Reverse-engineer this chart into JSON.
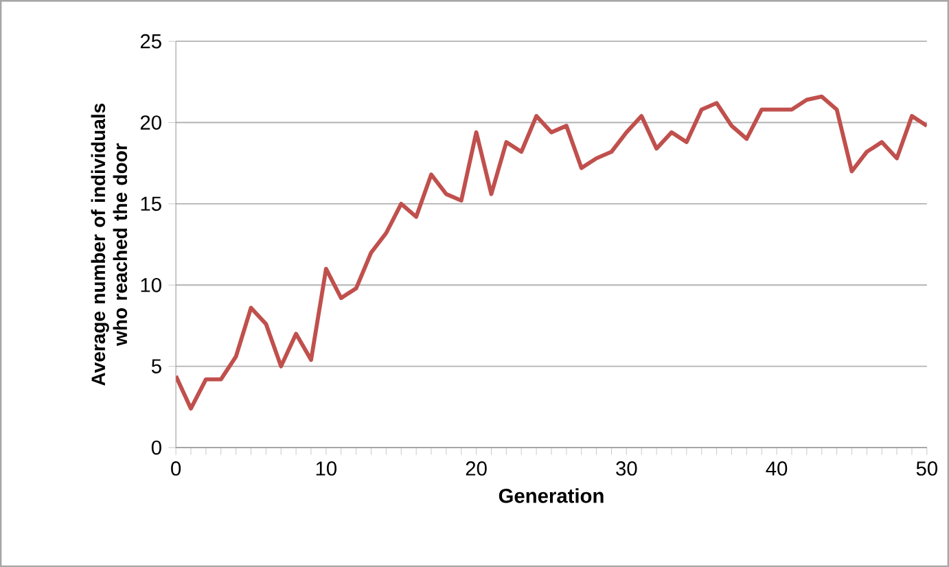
{
  "chart_data": {
    "type": "line",
    "xlabel": "Generation",
    "ylabel": "Average number of individuals who reached the door",
    "x": [
      0,
      1,
      2,
      3,
      4,
      5,
      6,
      7,
      8,
      9,
      10,
      11,
      12,
      13,
      14,
      15,
      16,
      17,
      18,
      19,
      20,
      21,
      22,
      23,
      24,
      25,
      26,
      27,
      28,
      29,
      30,
      31,
      32,
      33,
      34,
      35,
      36,
      37,
      38,
      39,
      40,
      41,
      42,
      43,
      44,
      45,
      46,
      47,
      48,
      49,
      50
    ],
    "series": [
      {
        "color": "#c0504d",
        "values": [
          4.4,
          2.4,
          4.2,
          4.2,
          5.6,
          8.6,
          7.6,
          5.0,
          7.0,
          5.4,
          11.0,
          9.2,
          9.8,
          12.0,
          13.2,
          15.0,
          14.2,
          16.8,
          15.6,
          15.2,
          19.4,
          15.6,
          18.8,
          18.2,
          20.4,
          19.4,
          19.8,
          17.2,
          17.8,
          18.2,
          19.4,
          20.4,
          18.4,
          19.4,
          18.8,
          20.8,
          21.2,
          19.8,
          19.0,
          20.8,
          20.8,
          20.8,
          21.4,
          21.6,
          20.8,
          17.0,
          18.2,
          18.8,
          17.8,
          20.4,
          19.8
        ]
      }
    ],
    "xlim": [
      0,
      50
    ],
    "xticks": [
      0,
      10,
      20,
      30,
      40,
      50
    ],
    "ylim": [
      0,
      25
    ],
    "yticks": [
      0,
      5,
      10,
      15,
      20,
      25
    ],
    "grid": "y",
    "marker": "none",
    "line_style": "solid"
  }
}
